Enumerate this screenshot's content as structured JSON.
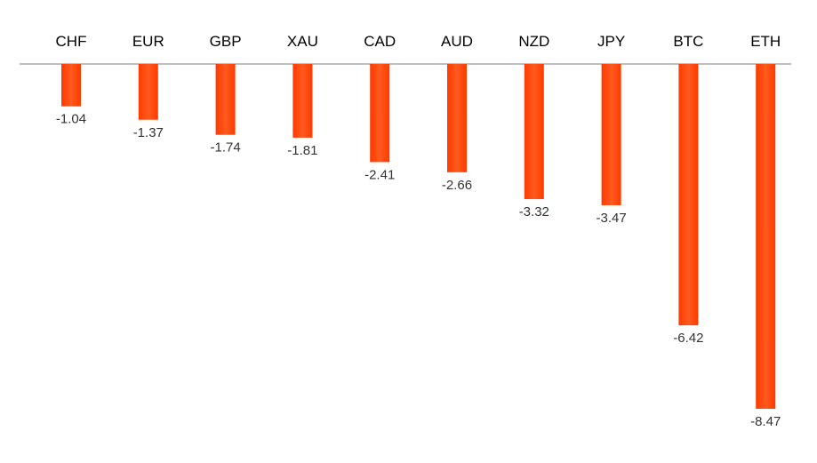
{
  "chart_data": {
    "type": "bar",
    "orientation": "vertical",
    "categories": [
      "CHF",
      "EUR",
      "GBP",
      "XAU",
      "CAD",
      "AUD",
      "NZD",
      "JPY",
      "BTC",
      "ETH"
    ],
    "values": [
      -1.04,
      -1.37,
      -1.74,
      -1.81,
      -2.41,
      -2.66,
      -3.32,
      -3.47,
      -6.42,
      -8.47
    ],
    "data_labels": [
      "-1.04",
      "-1.37",
      "-1.74",
      "-1.81",
      "-2.41",
      "-2.66",
      "-3.32",
      "-3.47",
      "-6.42",
      "-8.47"
    ],
    "title": "",
    "xlabel": "",
    "ylabel": "",
    "ylim": [
      -8.47,
      0
    ],
    "category_axis_position": "top",
    "grid": false,
    "legend": "none",
    "colors": {
      "bar_light": "#ff5a1f",
      "bar_dark": "#ff3a00",
      "axis_line": "#bfbfbf",
      "category_text": "#000000",
      "value_text": "#333333"
    }
  }
}
